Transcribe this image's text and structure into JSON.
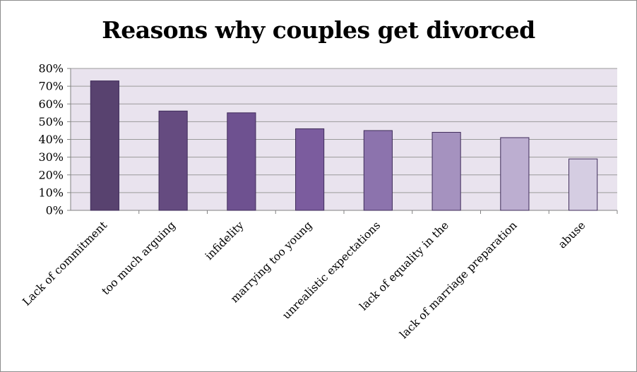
{
  "chart_data": {
    "type": "bar",
    "title": "Reasons why couples get divorced",
    "xlabel": "",
    "ylabel": "",
    "categories": [
      "Lack of commitment",
      "too much arguing",
      "infidelity",
      "marrying too young",
      "unrealistic expectations",
      "lack of equality in the",
      "lack of marriage preparation",
      "abuse"
    ],
    "values": [
      73,
      56,
      55,
      46,
      45,
      44,
      41,
      29
    ],
    "ylim": [
      0,
      80
    ],
    "y_ticks": [
      "0%",
      "10%",
      "20%",
      "30%",
      "40%",
      "50%",
      "60%",
      "70%",
      "80%"
    ],
    "y_tick_values": [
      0,
      10,
      20,
      30,
      40,
      50,
      60,
      70,
      80
    ],
    "grid": true,
    "legend": "none",
    "colors": {
      "plot_background": "#e9e3ee",
      "gridline": "#9a9a9a",
      "bar_outline": "#3f2c5a",
      "bars": [
        "#58426f",
        "#654b80",
        "#6e5190",
        "#7b5c9e",
        "#8c73ad",
        "#a592bf",
        "#bcaed0",
        "#d5cde2"
      ]
    }
  }
}
